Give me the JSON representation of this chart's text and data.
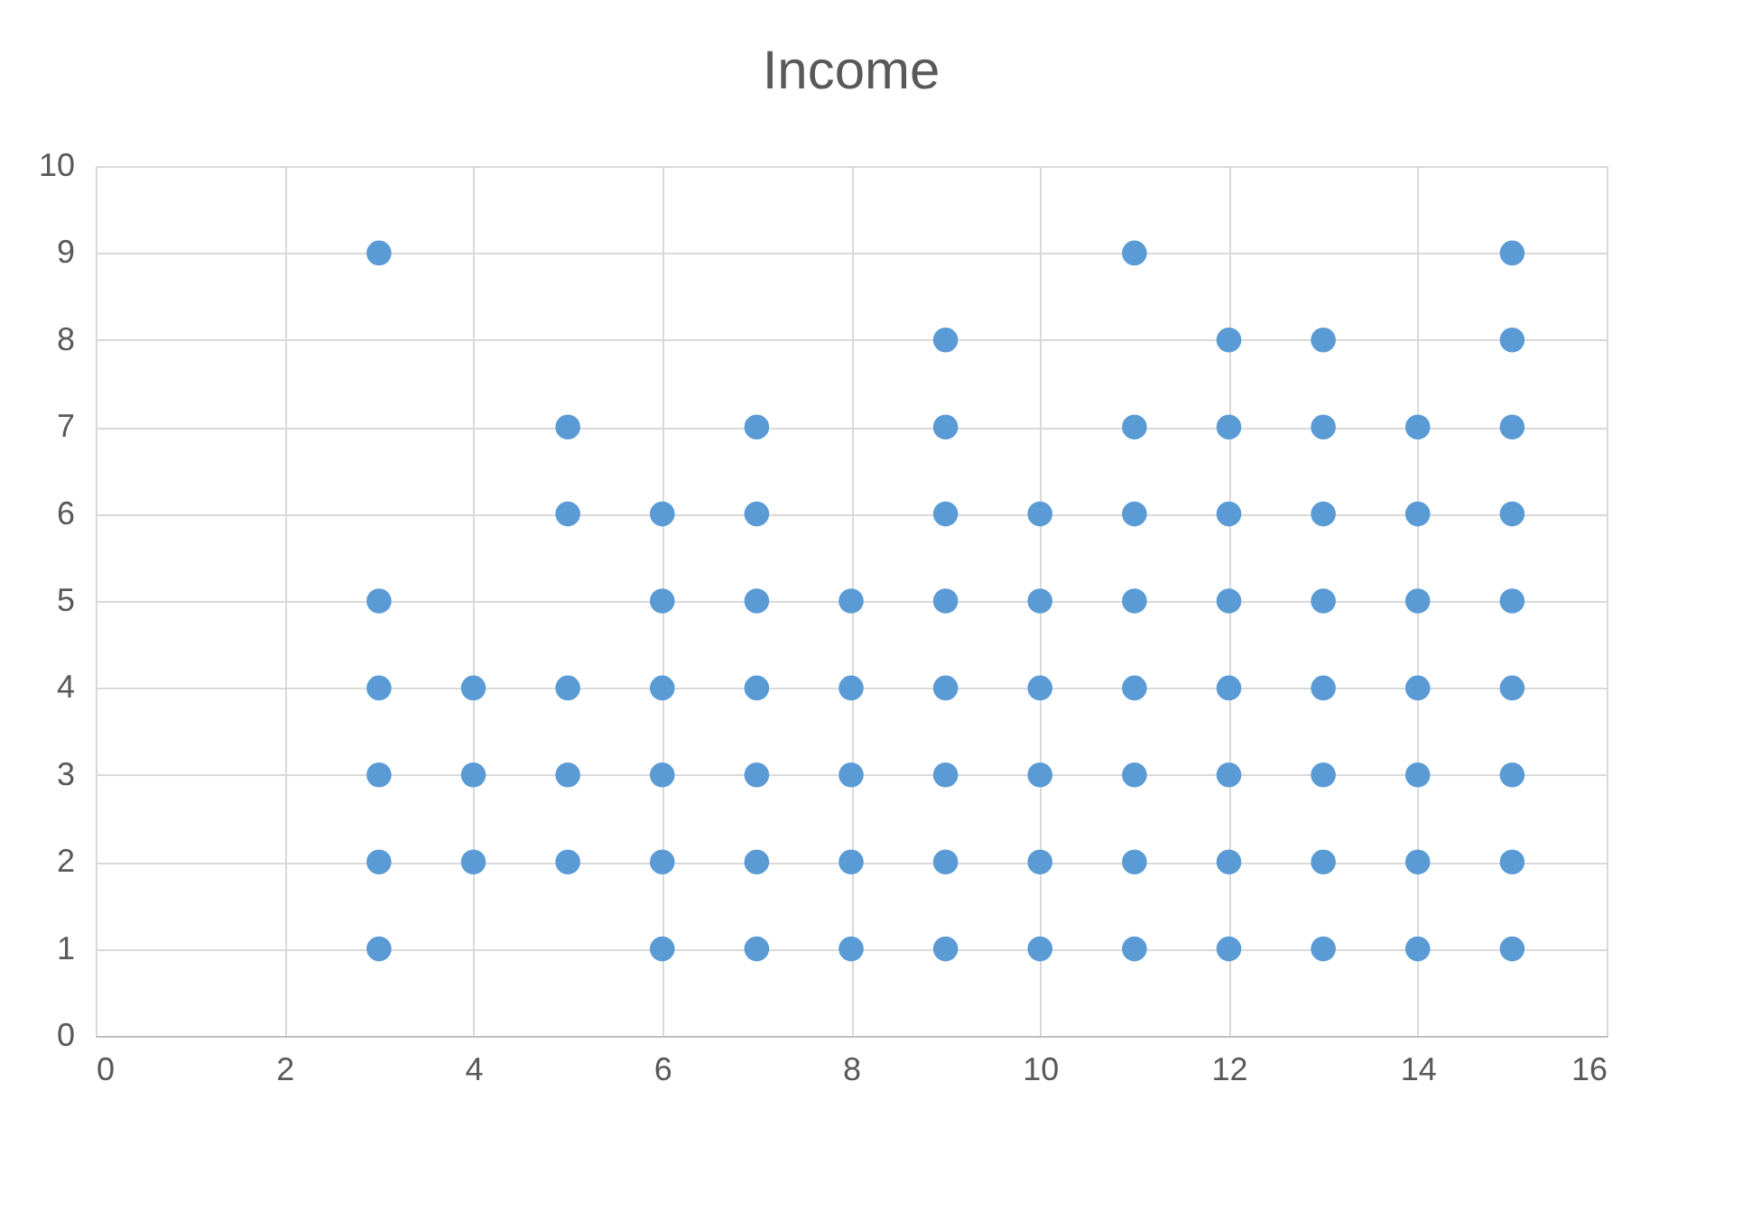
{
  "chart_data": {
    "type": "scatter",
    "title": "Income",
    "x": [
      3,
      3,
      3,
      3,
      3,
      3,
      4,
      4,
      4,
      5,
      5,
      5,
      5,
      5,
      6,
      6,
      6,
      6,
      6,
      6,
      7,
      7,
      7,
      7,
      7,
      7,
      7,
      8,
      8,
      8,
      8,
      8,
      9,
      9,
      9,
      9,
      9,
      9,
      9,
      9,
      10,
      10,
      10,
      10,
      10,
      10,
      11,
      11,
      11,
      11,
      11,
      11,
      11,
      11,
      12,
      12,
      12,
      12,
      12,
      12,
      12,
      12,
      13,
      13,
      13,
      13,
      13,
      13,
      13,
      13,
      14,
      14,
      14,
      14,
      14,
      14,
      14,
      15,
      15,
      15,
      15,
      15,
      15,
      15,
      15,
      15
    ],
    "values": [
      1,
      2,
      3,
      4,
      5,
      9,
      2,
      3,
      4,
      2,
      3,
      4,
      6,
      7,
      1,
      2,
      3,
      4,
      5,
      6,
      1,
      2,
      3,
      4,
      5,
      6,
      7,
      1,
      2,
      3,
      4,
      5,
      1,
      2,
      3,
      4,
      5,
      6,
      7,
      8,
      1,
      2,
      3,
      4,
      5,
      6,
      1,
      2,
      3,
      4,
      5,
      6,
      7,
      9,
      1,
      2,
      3,
      4,
      5,
      6,
      7,
      8,
      1,
      2,
      3,
      4,
      5,
      6,
      7,
      8,
      1,
      2,
      3,
      4,
      5,
      6,
      7,
      1,
      2,
      3,
      4,
      5,
      6,
      7,
      8,
      9
    ],
    "color": "#5b9bd5",
    "marker": "circle",
    "grid": true,
    "xlim": [
      0,
      16
    ],
    "xticks": [
      0,
      2,
      4,
      6,
      8,
      10,
      12,
      14,
      16
    ],
    "ylim": [
      0,
      10
    ],
    "yticks": [
      0,
      1,
      2,
      3,
      4,
      5,
      6,
      7,
      8,
      9,
      10
    ]
  }
}
